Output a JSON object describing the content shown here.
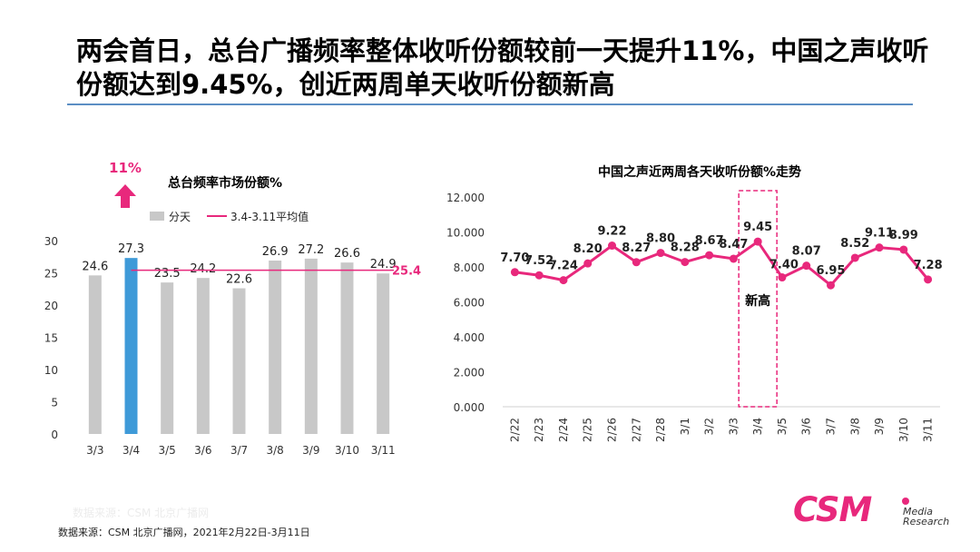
{
  "slide": {
    "title": "两会首日，总台广播频率整体收听份额较前一天提升11%，中国之声收听份额达到9.45%，创近两周单天收听份额新高",
    "faint_source": "数据来源：CSM 北京广播网",
    "source": "数据来源：CSM 北京广播网，2021年2月22日-3月11日",
    "logo": {
      "brand": "CSM",
      "line1": "Media",
      "line2": "Research"
    }
  },
  "chart_data": [
    {
      "type": "bar",
      "title": "总台频率市场份额%",
      "callout": {
        "label": "11%",
        "icon": "up-arrow-icon"
      },
      "categories": [
        "3/3",
        "3/4",
        "3/5",
        "3/6",
        "3/7",
        "3/8",
        "3/9",
        "3/10",
        "3/11"
      ],
      "series": [
        {
          "name": "分天",
          "values": [
            24.6,
            27.3,
            23.5,
            24.2,
            22.6,
            26.9,
            27.2,
            26.6,
            24.9
          ]
        }
      ],
      "reference_line": {
        "name": "3.4-3.11平均值",
        "value": 25.4,
        "label": "25.4"
      },
      "highlight_category": "3/4",
      "ylim": [
        0,
        30
      ],
      "yticks": [
        0,
        5,
        10,
        15,
        20,
        25,
        30
      ],
      "colors": {
        "bar": "#c8c8c8",
        "highlight": "#3e9ad8",
        "reference": "#e8287c"
      },
      "legend": "top",
      "grid": false
    },
    {
      "type": "line",
      "title": "中国之声近两周各天收听份额%走势",
      "categories": [
        "2/22",
        "2/23",
        "2/24",
        "2/25",
        "2/26",
        "2/27",
        "2/28",
        "3/1",
        "3/2",
        "3/3",
        "3/4",
        "3/5",
        "3/6",
        "3/7",
        "3/8",
        "3/9",
        "3/10",
        "3/11"
      ],
      "series": [
        {
          "values": [
            7.7,
            7.52,
            7.24,
            8.2,
            9.22,
            8.27,
            8.8,
            8.28,
            8.67,
            8.47,
            9.45,
            7.4,
            8.07,
            6.95,
            8.52,
            9.11,
            8.99,
            7.28
          ]
        }
      ],
      "value_labels": [
        "7.70",
        "7.52",
        "7.24",
        "8.20",
        "9.22",
        "8.27",
        "8.80",
        "8.28",
        "8.67",
        "8.47",
        "9.45",
        "7.40",
        "8.07",
        "6.95",
        "8.52",
        "9.11",
        "8.99",
        "7.28"
      ],
      "highlight": {
        "category": "3/4",
        "label": "新高"
      },
      "ylim": [
        0,
        12
      ],
      "yticks": [
        "0.000",
        "2.000",
        "4.000",
        "6.000",
        "8.000",
        "10.000",
        "12.000"
      ],
      "colors": {
        "line": "#e8287c",
        "highlight_box": "#e8287c"
      },
      "grid": false
    }
  ]
}
